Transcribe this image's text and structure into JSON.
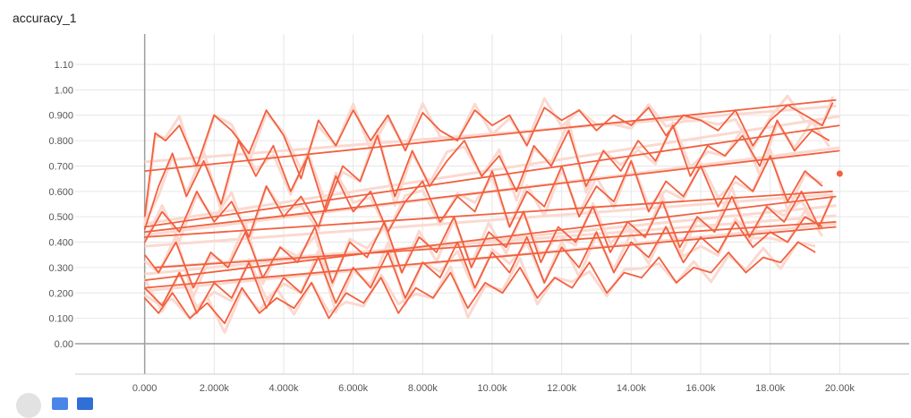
{
  "chart_data": {
    "type": "line",
    "title": "accuracy_1",
    "xlabel": "",
    "ylabel": "",
    "xlim": [
      -2000,
      22000
    ],
    "ylim": [
      -0.12,
      1.22
    ],
    "x_ticks": [
      0,
      2000,
      4000,
      6000,
      8000,
      10000,
      12000,
      14000,
      16000,
      18000,
      20000
    ],
    "x_tick_labels": [
      "0.000",
      "2.000k",
      "4.000k",
      "6.000k",
      "8.000k",
      "10.00k",
      "12.00k",
      "14.00k",
      "16.00k",
      "18.00k",
      "20.00k"
    ],
    "y_ticks": [
      0,
      0.1,
      0.2,
      0.3,
      0.4,
      0.5,
      0.6,
      0.7,
      0.8,
      0.9,
      1.0,
      1.1
    ],
    "y_tick_labels": [
      "0.00",
      "0.100",
      "0.200",
      "0.300",
      "0.400",
      "0.500",
      "0.600",
      "0.700",
      "0.800",
      "0.900",
      "1.00",
      "1.10"
    ],
    "grid": true,
    "smoothed_color": "#f2603f",
    "raw_color": "#fbd9d0",
    "series": [
      {
        "x": [
          0,
          300,
          600,
          1000,
          1500,
          2000,
          2500,
          3000,
          3500,
          4000,
          4500,
          5000,
          5500,
          6000,
          6500,
          7000,
          7500,
          8000,
          8500,
          9000,
          9500,
          10000,
          10500,
          11000,
          11500,
          12000,
          12500,
          13000,
          13500,
          14000,
          14500,
          15000,
          15500,
          16000,
          16500,
          17000,
          17500,
          18000,
          18500,
          19000,
          19500,
          19800
        ],
        "values": [
          0.5,
          0.83,
          0.8,
          0.86,
          0.7,
          0.9,
          0.84,
          0.75,
          0.92,
          0.82,
          0.65,
          0.88,
          0.78,
          0.92,
          0.8,
          0.9,
          0.76,
          0.91,
          0.84,
          0.8,
          0.92,
          0.86,
          0.9,
          0.78,
          0.93,
          0.88,
          0.92,
          0.84,
          0.9,
          0.86,
          0.93,
          0.82,
          0.9,
          0.88,
          0.84,
          0.92,
          0.78,
          0.88,
          0.94,
          0.9,
          0.86,
          0.95
        ]
      },
      {
        "x": [
          0,
          19900
        ],
        "values": [
          0.68,
          0.96
        ]
      },
      {
        "x": [
          0,
          400,
          800,
          1200,
          1700,
          2200,
          2700,
          3200,
          3700,
          4200,
          4700,
          5200,
          5700,
          6200,
          6700,
          7200,
          7700,
          8200,
          8700,
          9200,
          9700,
          10200,
          10700,
          11200,
          11700,
          12200,
          12700,
          13200,
          13700,
          14200,
          14700,
          15200,
          15700,
          16200,
          16700,
          17200,
          17700,
          18200,
          18700,
          19200,
          19700
        ],
        "values": [
          0.45,
          0.62,
          0.75,
          0.58,
          0.72,
          0.55,
          0.8,
          0.66,
          0.78,
          0.6,
          0.74,
          0.52,
          0.7,
          0.64,
          0.82,
          0.58,
          0.76,
          0.62,
          0.72,
          0.8,
          0.66,
          0.74,
          0.6,
          0.78,
          0.7,
          0.84,
          0.62,
          0.76,
          0.68,
          0.8,
          0.72,
          0.86,
          0.66,
          0.78,
          0.74,
          0.82,
          0.7,
          0.88,
          0.76,
          0.84,
          0.8
        ]
      },
      {
        "x": [
          0,
          20000
        ],
        "values": [
          0.46,
          0.86
        ]
      },
      {
        "x": [
          0,
          500,
          1000,
          1500,
          2000,
          2500,
          3000,
          3500,
          4000,
          4500,
          5000,
          5500,
          6000,
          6500,
          7000,
          7500,
          8000,
          8500,
          9000,
          9500,
          10000,
          10500,
          11000,
          11500,
          12000,
          12500,
          13000,
          13500,
          14000,
          14500,
          15000,
          15500,
          16000,
          16500,
          17000,
          17500,
          18000,
          18500,
          19000,
          19500
        ],
        "values": [
          0.4,
          0.52,
          0.44,
          0.6,
          0.48,
          0.56,
          0.42,
          0.62,
          0.5,
          0.58,
          0.46,
          0.66,
          0.52,
          0.6,
          0.44,
          0.56,
          0.64,
          0.48,
          0.58,
          0.52,
          0.68,
          0.46,
          0.6,
          0.54,
          0.7,
          0.5,
          0.62,
          0.56,
          0.72,
          0.52,
          0.64,
          0.58,
          0.7,
          0.54,
          0.66,
          0.6,
          0.74,
          0.56,
          0.68,
          0.62
        ]
      },
      {
        "x": [
          0,
          20000
        ],
        "values": [
          0.44,
          0.76
        ]
      },
      {
        "x": [
          0,
          400,
          900,
          1400,
          1900,
          2400,
          2900,
          3400,
          3900,
          4400,
          4900,
          5400,
          5900,
          6400,
          6900,
          7400,
          7900,
          8400,
          8900,
          9400,
          9900,
          10400,
          10900,
          11400,
          11900,
          12400,
          12900,
          13400,
          13900,
          14400,
          14900,
          15400,
          15900,
          16400,
          16900,
          17400,
          17900,
          18400,
          18900,
          19400,
          19800
        ],
        "values": [
          0.35,
          0.28,
          0.4,
          0.22,
          0.36,
          0.3,
          0.44,
          0.26,
          0.38,
          0.32,
          0.46,
          0.24,
          0.4,
          0.34,
          0.48,
          0.28,
          0.42,
          0.36,
          0.5,
          0.3,
          0.44,
          0.38,
          0.52,
          0.32,
          0.46,
          0.4,
          0.54,
          0.36,
          0.48,
          0.42,
          0.56,
          0.38,
          0.5,
          0.44,
          0.58,
          0.42,
          0.54,
          0.48,
          0.6,
          0.46,
          0.58
        ]
      },
      {
        "x": [
          0,
          19800
        ],
        "values": [
          0.42,
          0.6
        ]
      },
      {
        "x": [
          0,
          500,
          1000,
          1500,
          2000,
          2500,
          3000,
          3500,
          4000,
          4500,
          5000,
          5500,
          6000,
          6500,
          7000,
          7500,
          8000,
          8500,
          9000,
          9500,
          10000,
          10500,
          11000,
          11500,
          12000,
          12500,
          13000,
          13500,
          14000,
          14500,
          15000,
          15500,
          16000,
          16500,
          17000,
          17500,
          18000,
          18500,
          19000,
          19500
        ],
        "values": [
          0.22,
          0.15,
          0.28,
          0.12,
          0.24,
          0.18,
          0.32,
          0.14,
          0.26,
          0.2,
          0.34,
          0.16,
          0.3,
          0.22,
          0.36,
          0.18,
          0.32,
          0.26,
          0.4,
          0.22,
          0.36,
          0.28,
          0.42,
          0.24,
          0.38,
          0.3,
          0.44,
          0.28,
          0.4,
          0.34,
          0.46,
          0.32,
          0.42,
          0.36,
          0.48,
          0.38,
          0.44,
          0.4,
          0.5,
          0.46
        ]
      },
      {
        "x": [
          0,
          19900
        ],
        "values": [
          0.25,
          0.58
        ]
      },
      {
        "x": [
          0,
          400,
          800,
          1300,
          1800,
          2300,
          2800,
          3300,
          3800,
          4300,
          4800,
          5300,
          5800,
          6300,
          6800,
          7300,
          7800,
          8300,
          8800,
          9300,
          9800,
          10300,
          10800,
          11300,
          11800,
          12300,
          12800,
          13300,
          13800,
          14300,
          14800,
          15300,
          15800,
          16300,
          16800,
          17300,
          17800,
          18300,
          18800,
          19300
        ],
        "values": [
          0.18,
          0.12,
          0.2,
          0.1,
          0.16,
          0.08,
          0.22,
          0.12,
          0.18,
          0.14,
          0.24,
          0.1,
          0.2,
          0.16,
          0.26,
          0.12,
          0.22,
          0.18,
          0.28,
          0.14,
          0.24,
          0.2,
          0.3,
          0.18,
          0.26,
          0.22,
          0.32,
          0.2,
          0.28,
          0.26,
          0.34,
          0.24,
          0.3,
          0.28,
          0.36,
          0.28,
          0.34,
          0.32,
          0.4,
          0.36
        ]
      },
      {
        "x": [
          300,
          19900
        ],
        "values": [
          0.3,
          0.48
        ]
      },
      {
        "x": [
          0,
          19900
        ],
        "values": [
          0.22,
          0.46
        ]
      }
    ],
    "end_marker": {
      "x": 20000,
      "value": 0.67
    }
  },
  "controls": {
    "circle_icon": "circle-icon",
    "square_icon": "square-icon"
  }
}
